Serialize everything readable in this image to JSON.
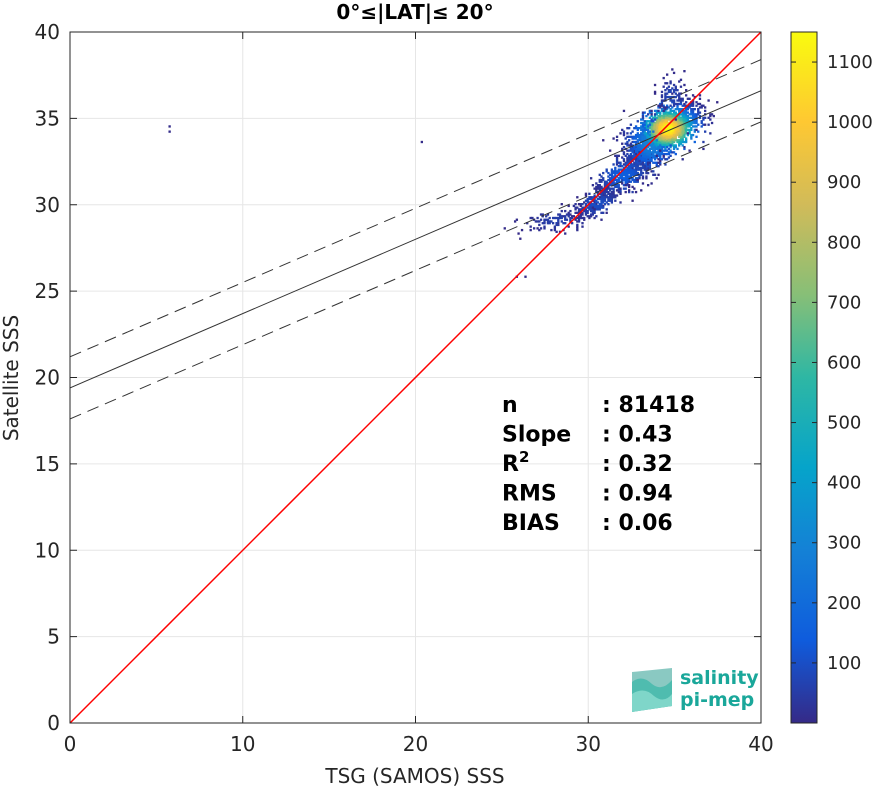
{
  "chart_data": {
    "type": "heatmap",
    "title": "0°≤|LAT|≤ 20°",
    "xlabel": "TSG (SAMOS) SSS",
    "ylabel": "Satellite SSS",
    "xlim": [
      0,
      40
    ],
    "ylim": [
      0,
      40
    ],
    "xticks": [
      0,
      10,
      20,
      30,
      40
    ],
    "yticks": [
      0,
      5,
      10,
      15,
      20,
      25,
      30,
      35,
      40
    ],
    "grid": true,
    "colorbar": {
      "colormap": "parula",
      "range": [
        0,
        1150
      ],
      "ticks": [
        100,
        200,
        300,
        400,
        500,
        600,
        700,
        800,
        900,
        1000,
        1100
      ]
    },
    "lines": {
      "one_to_one": {
        "slope": 1.0,
        "intercept": 0.0,
        "color": "#ff0000"
      },
      "fit": {
        "slope": 0.43,
        "intercept": 19.4,
        "color": "#333333"
      },
      "fit_upper": {
        "slope": 0.43,
        "intercept": 21.2,
        "color": "#333333",
        "dash": true
      },
      "fit_lower": {
        "slope": 0.43,
        "intercept": 17.6,
        "color": "#333333",
        "dash": true
      }
    },
    "stats": [
      {
        "label": "n",
        "value": ": 81418"
      },
      {
        "label": "Slope",
        "value": ": 0.43"
      },
      {
        "label": "R",
        "sup": "2",
        "value": ": 0.32"
      },
      {
        "label": "RMS",
        "value": ": 0.94"
      },
      {
        "label": "BIAS",
        "value": ": 0.06"
      }
    ],
    "density_clusters": [
      {
        "cx": 34.6,
        "cy": 34.4,
        "sx": 0.9,
        "sy": 0.7,
        "rho": 0.5,
        "peak": 1150,
        "n": 1600
      },
      {
        "cx": 33.6,
        "cy": 33.6,
        "sx": 0.8,
        "sy": 0.9,
        "rho": 0.5,
        "peak": 300,
        "n": 900
      },
      {
        "cx": 32.0,
        "cy": 31.7,
        "sx": 0.9,
        "sy": 0.7,
        "rho": 0.8,
        "peak": 150,
        "n": 500
      },
      {
        "cx": 30.5,
        "cy": 30.1,
        "sx": 0.8,
        "sy": 0.5,
        "rho": 0.8,
        "peak": 100,
        "n": 300
      },
      {
        "cx": 34.8,
        "cy": 36.3,
        "sx": 0.4,
        "sy": 0.6,
        "rho": 0.2,
        "peak": 80,
        "n": 100
      },
      {
        "cx": 28.2,
        "cy": 29.1,
        "sx": 1.1,
        "sy": 0.4,
        "rho": 0.5,
        "peak": 60,
        "n": 120
      }
    ],
    "outliers": [
      [
        5.8,
        34.5
      ],
      [
        5.8,
        34.2
      ],
      [
        20.4,
        33.6
      ],
      [
        25.8,
        25.9
      ],
      [
        26.3,
        25.9
      ],
      [
        25.2,
        28.6
      ],
      [
        27.0,
        28.6
      ],
      [
        35.5,
        37.7
      ],
      [
        35.6,
        36.6
      ],
      [
        36.6,
        33.3
      ],
      [
        36.7,
        34.6
      ]
    ]
  },
  "logo": {
    "line1": "salinity",
    "line2": "pi-mep"
  }
}
